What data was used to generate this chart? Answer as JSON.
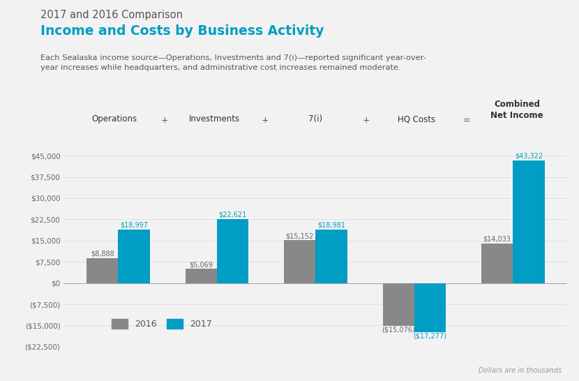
{
  "title_top": "2017 and 2016 Comparison",
  "title_main": "Income and Costs by Business Activity",
  "subtitle": "Each Sealaska income source—Operations, Investments and 7(i)—reported significant year-over-\nyear increases while headquarters, and administrative cost increases remained moderate.",
  "footnote": "Dollars are in thousands",
  "categories": [
    "Operations",
    "Investments",
    "7(i)",
    "HQ Costs",
    "Combined\nNet Income"
  ],
  "operators": [
    "+",
    "+",
    "+",
    "="
  ],
  "values_2016": [
    8888,
    5069,
    15152,
    -15076,
    14033
  ],
  "values_2017": [
    18997,
    22621,
    18981,
    -17277,
    43322
  ],
  "labels_2016": [
    "$8,888",
    "$5,069",
    "$15,152",
    "($15,076)",
    "$14,033"
  ],
  "labels_2017": [
    "$18,997",
    "$22,621",
    "$18,981",
    "($17,277)",
    "$43,322"
  ],
  "color_2016": "#888888",
  "color_2017": "#009dc4",
  "background_color": "#f2f2f2",
  "ylim_min": -22500,
  "ylim_max": 47500,
  "yticks": [
    -22500,
    -15000,
    -7500,
    0,
    7500,
    15000,
    22500,
    30000,
    37500,
    45000
  ],
  "ytick_labels": [
    "($22,500)",
    "($15,000)",
    "($7,500)",
    "$0",
    "$7,500",
    "$15,000",
    "$22,500",
    "$30,000",
    "$37,500",
    "$45,000"
  ],
  "title_top_color": "#555555",
  "title_main_color": "#009dc4",
  "subtitle_color": "#555555",
  "legend_2016": "2016",
  "legend_2017": "2017",
  "bar_width": 0.32,
  "label_fontsize": 7.0,
  "grid_color": "#dddddd"
}
